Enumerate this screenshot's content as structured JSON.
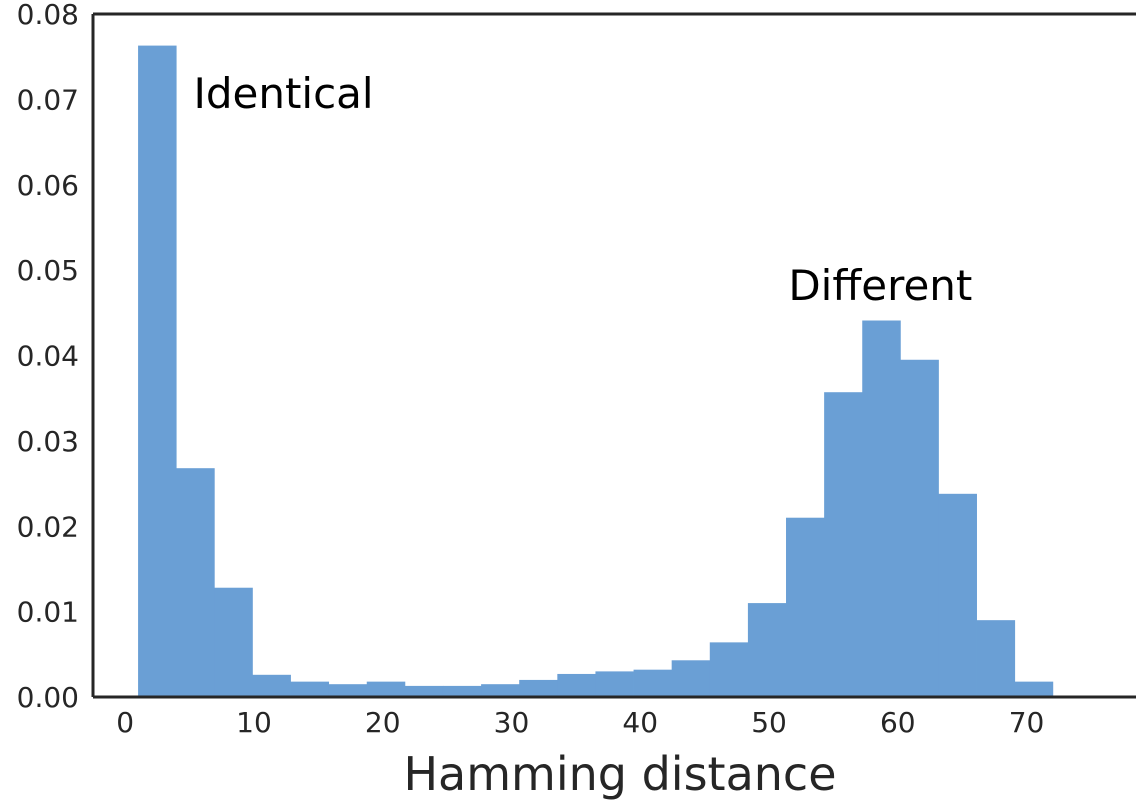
{
  "chart_data": {
    "type": "bar",
    "title": "",
    "xlabel": "Hamming distance",
    "ylabel": "",
    "xlim": [
      -2.5,
      78.5
    ],
    "ylim": [
      0,
      0.08
    ],
    "x_ticks": [
      0,
      10,
      20,
      30,
      40,
      50,
      60,
      70
    ],
    "x_tick_labels": [
      "0",
      "10",
      "20",
      "30",
      "40",
      "50",
      "60",
      "70"
    ],
    "y_ticks": [
      0,
      0.01,
      0.02,
      0.03,
      0.04,
      0.05,
      0.06,
      0.07,
      0.08
    ],
    "y_tick_labels": [
      "0.00",
      "0.01",
      "0.02",
      "0.03",
      "0.04",
      "0.05",
      "0.06",
      "0.07",
      "0.08"
    ],
    "bin_edges": [
      1,
      3.96,
      6.92,
      9.88,
      12.84,
      15.8,
      18.76,
      21.72,
      24.68,
      27.64,
      30.6,
      33.56,
      36.52,
      39.48,
      42.44,
      45.4,
      48.36,
      51.32,
      54.28,
      57.24,
      60.2,
      63.16,
      66.12,
      69.08,
      72.04
    ],
    "values": [
      0.0763,
      0.0268,
      0.0128,
      0.0026,
      0.0018,
      0.0015,
      0.0018,
      0.0013,
      0.0013,
      0.0015,
      0.002,
      0.0027,
      0.003,
      0.0032,
      0.0043,
      0.0064,
      0.011,
      0.021,
      0.0357,
      0.0441,
      0.0395,
      0.0238,
      0.009,
      0.0018
    ],
    "color": "#6a9fd5",
    "grid": false,
    "annotations": [
      {
        "text": "Identical",
        "x": 5.3,
        "y": 0.069
      },
      {
        "text": "Different",
        "x": 51.5,
        "y": 0.0465
      }
    ]
  }
}
